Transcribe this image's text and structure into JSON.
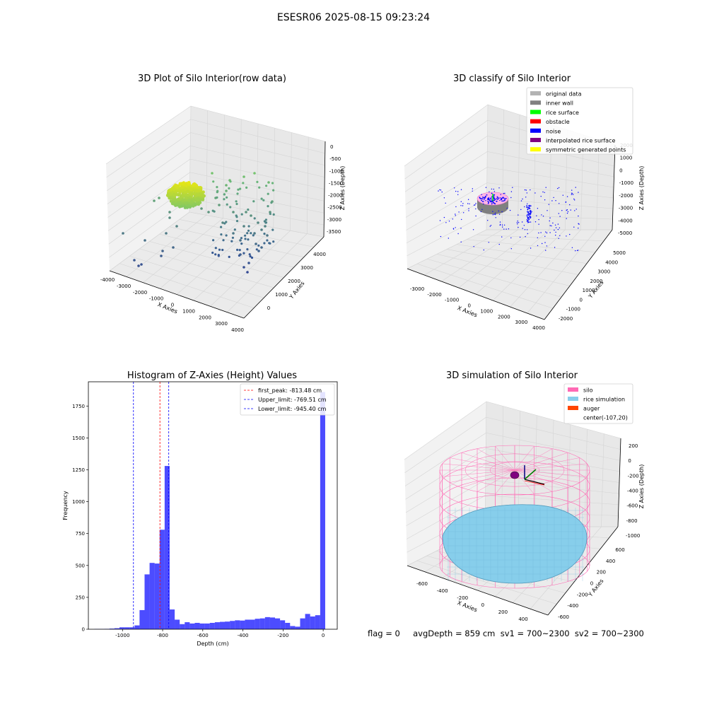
{
  "suptitle": "ESESR06 2025-08-15 09:23:24",
  "footer": "flag = 0     avgDepth = 859 cm  sv1 = 700~2300  sv2 = 700~2300",
  "panels": {
    "raw": {
      "title": "3D Plot of Silo Interior(row data)",
      "xlabel": "X Axies",
      "ylabel": "Y Axies",
      "zlabel": "Z Axies (Depth)",
      "xticks": [
        "-4000",
        "-3000",
        "-2000",
        "-1000",
        "0",
        "1000",
        "2000",
        "3000",
        "4000"
      ],
      "yticks": [
        "0",
        "1000",
        "2000",
        "3000",
        "4000"
      ],
      "zticks": [
        "0",
        "-500",
        "-1000",
        "-1500",
        "-2000",
        "-2500",
        "-3000",
        "-3500"
      ]
    },
    "classify": {
      "title": "3D classify of Silo Interior",
      "xlabel": "X Axies",
      "ylabel": "Y Axies",
      "zlabel": "Z Axies (Depth)",
      "xticks": [
        "-3000",
        "-2000",
        "-1000",
        "0",
        "1000",
        "2000",
        "3000",
        "4000"
      ],
      "yticks": [
        "-2000",
        "-1000",
        "0",
        "1000",
        "2000",
        "3000",
        "4000",
        "5000"
      ],
      "zticks": [
        "2000",
        "1000",
        "0",
        "-1000",
        "-2000",
        "-3000",
        "-4000",
        "-5000"
      ],
      "legend": [
        {
          "label": "original data",
          "color": "#b3b3b3"
        },
        {
          "label": "inner wall",
          "color": "#808080"
        },
        {
          "label": "rice surface",
          "color": "#00ff00"
        },
        {
          "label": "obstacle",
          "color": "#ff0000"
        },
        {
          "label": "noise",
          "color": "#0000ff"
        },
        {
          "label": "interpolated rice surface",
          "color": "#800080"
        },
        {
          "label": "symmetric generated points",
          "color": "#ffff00"
        }
      ]
    },
    "simulation": {
      "title": "3D simulation of Silo Interior",
      "xlabel": "X Axies",
      "ylabel": "Y Axies",
      "zlabel": "Z Axies (Depth)",
      "xticks": [
        "-600",
        "-400",
        "-200",
        "0",
        "200",
        "400"
      ],
      "yticks": [
        "-600",
        "-400",
        "-200",
        "0",
        "200",
        "400",
        "600"
      ],
      "zticks": [
        "200",
        "0",
        "-200",
        "-400",
        "-600",
        "-800",
        "-1000"
      ],
      "legend": [
        {
          "label": "silo",
          "color": "#ff69b4"
        },
        {
          "label": "rice simulation",
          "color": "#87ceeb"
        },
        {
          "label": "auger",
          "color": "#ff4500"
        },
        {
          "label": "center(-107,20)",
          "color": ""
        }
      ]
    }
  },
  "chart_data": {
    "type": "bar",
    "title": "Histogram of Z-Axies (Height) Values",
    "xlabel": "Depth (cm)",
    "ylabel": "Frequency",
    "xlim": [
      -1170,
      70
    ],
    "ylim": [
      0,
      1940
    ],
    "xticks": [
      -1000,
      -800,
      -600,
      -400,
      -200,
      0
    ],
    "yticks": [
      0,
      250,
      500,
      750,
      1000,
      1250,
      1500,
      1750
    ],
    "bar_color": "#0000ff",
    "bin_width": 25,
    "bins_left": [
      -1140,
      -1115,
      -1090,
      -1065,
      -1040,
      -1015,
      -990,
      -965,
      -940,
      -915,
      -890,
      -865,
      -840,
      -815,
      -790,
      -765,
      -740,
      -715,
      -690,
      -665,
      -640,
      -615,
      -590,
      -565,
      -540,
      -515,
      -490,
      -465,
      -440,
      -415,
      -390,
      -365,
      -340,
      -315,
      -290,
      -265,
      -240,
      -215,
      -190,
      -165,
      -140,
      -115,
      -90,
      -65,
      -40,
      -15
    ],
    "values": [
      2,
      2,
      3,
      5,
      8,
      15,
      15,
      15,
      30,
      150,
      430,
      520,
      515,
      780,
      1280,
      155,
      75,
      40,
      55,
      45,
      50,
      45,
      45,
      50,
      55,
      58,
      60,
      65,
      70,
      68,
      75,
      75,
      82,
      85,
      95,
      92,
      85,
      70,
      50,
      25,
      20,
      85,
      120,
      100,
      110,
      1860
    ],
    "vlines": [
      {
        "label": "first_peak: -813.48 cm",
        "x": -813.48,
        "color": "#ff0000"
      },
      {
        "label": "Upper_limit: -769.51 cm",
        "x": -769.51,
        "color": "#0000ff"
      },
      {
        "label": "Lower_limit: -945.40 cm",
        "x": -945.4,
        "color": "#0000ff"
      }
    ]
  }
}
